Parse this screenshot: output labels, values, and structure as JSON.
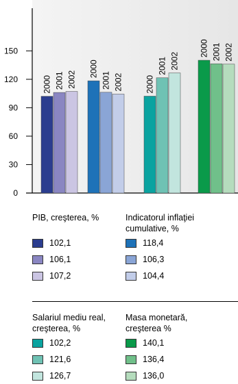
{
  "chart_data": {
    "type": "bar",
    "categories": [
      "2000",
      "2001",
      "2002"
    ],
    "series": [
      {
        "name": "PIB, creşterea, %",
        "colors": [
          "#2b3d8f",
          "#8a86c2",
          "#cbc5e3"
        ],
        "values": [
          102.1,
          106.1,
          107.2
        ],
        "value_labels": [
          "102,1",
          "106,1",
          "107,2"
        ]
      },
      {
        "name": "Indicatorul inflaţiei cumulative, %",
        "colors": [
          "#1e72b8",
          "#8aa5d6",
          "#c2cde9"
        ],
        "values": [
          118.4,
          106.3,
          104.4
        ],
        "value_labels": [
          "118,4",
          "106,3",
          "104,4"
        ]
      },
      {
        "name": "Salariul mediu real, creşterea, %",
        "colors": [
          "#0aa3a0",
          "#6fc2b4",
          "#c2e5de"
        ],
        "values": [
          102.2,
          121.6,
          126.7
        ],
        "value_labels": [
          "102,2",
          "121,6",
          "126,7"
        ]
      },
      {
        "name": "Masa monetară, creşterea %",
        "colors": [
          "#0a9a4a",
          "#70c08a",
          "#b5dcbd"
        ],
        "values": [
          140.1,
          136.4,
          136.0
        ],
        "value_labels": [
          "140,1",
          "136,4",
          "136,0"
        ]
      }
    ],
    "ylim": [
      0,
      195
    ],
    "yticks": [
      0,
      30,
      60,
      90,
      120,
      150
    ]
  }
}
